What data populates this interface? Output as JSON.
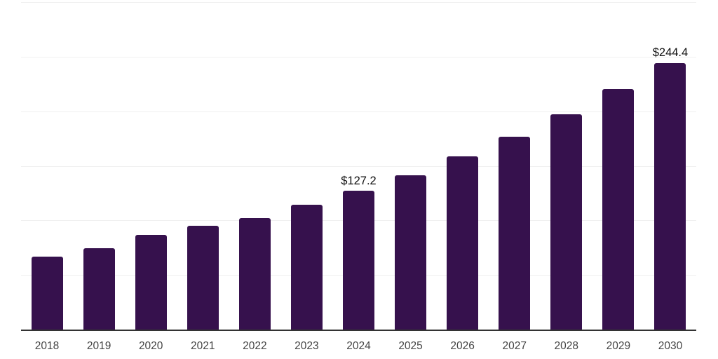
{
  "chart_data": {
    "type": "bar",
    "title": "",
    "xlabel": "",
    "ylabel": "",
    "categories": [
      "2018",
      "2019",
      "2020",
      "2021",
      "2022",
      "2023",
      "2024",
      "2025",
      "2026",
      "2027",
      "2028",
      "2029",
      "2030"
    ],
    "values": [
      67.1,
      74.6,
      86.7,
      95.3,
      102.4,
      114.2,
      127.2,
      141.5,
      158.5,
      176.4,
      197.2,
      220.2,
      244.4
    ],
    "data_labels": {
      "2024": "$127.2",
      "2030": "$244.4"
    },
    "ylim": [
      0,
      300
    ],
    "gridline_step": 50,
    "grid": true,
    "legend": false,
    "colors": {
      "bar": "#36114D",
      "gridline": "#f0f0f0",
      "axis_line": "#333333",
      "tick_label": "#444444",
      "data_label": "#111111"
    }
  }
}
